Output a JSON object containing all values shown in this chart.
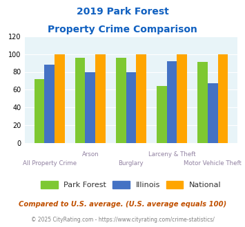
{
  "title_line1": "2019 Park Forest",
  "title_line2": "Property Crime Comparison",
  "categories": [
    "All Property Crime",
    "Arson",
    "Burglary",
    "Larceny & Theft",
    "Motor Vehicle Theft"
  ],
  "park_forest": [
    72,
    96,
    96,
    64,
    91
  ],
  "illinois": [
    88,
    80,
    80,
    92,
    67
  ],
  "national": [
    100,
    100,
    100,
    100,
    100
  ],
  "bar_colors": {
    "park_forest": "#7ec832",
    "illinois": "#4472c4",
    "national": "#ffa500"
  },
  "ylim": [
    0,
    120
  ],
  "yticks": [
    0,
    20,
    40,
    60,
    80,
    100,
    120
  ],
  "legend_labels": [
    "Park Forest",
    "Illinois",
    "National"
  ],
  "footnote1": "Compared to U.S. average. (U.S. average equals 100)",
  "footnote2": "© 2025 CityRating.com - https://www.cityrating.com/crime-statistics/",
  "bg_color": "#e8f4f8",
  "title_color": "#1060c0",
  "xticklabel_color": "#9080a0",
  "footnote1_color": "#c05000",
  "footnote2_color": "#808080",
  "xlabels_upper": [
    "",
    "Arson",
    "",
    "Larceny & Theft",
    ""
  ],
  "xlabels_lower": [
    "All Property Crime",
    "",
    "Burglary",
    "",
    "Motor Vehicle Theft"
  ]
}
